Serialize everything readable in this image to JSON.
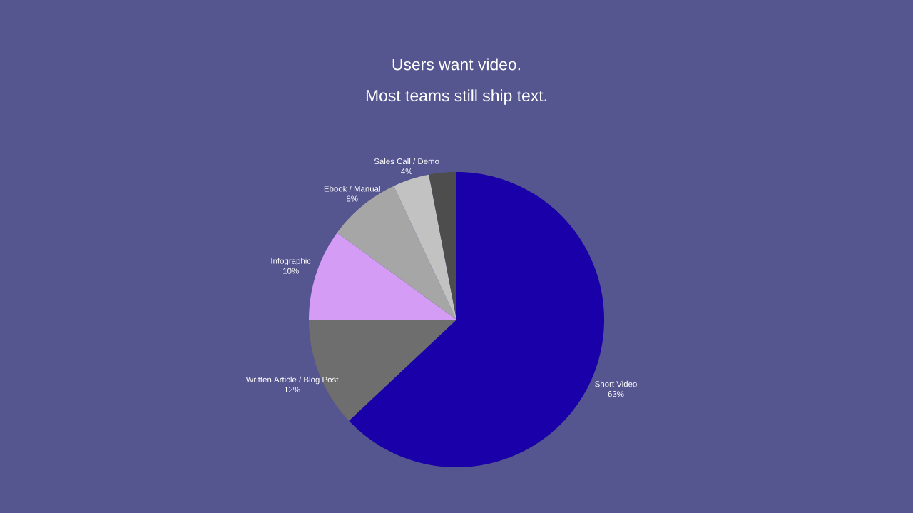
{
  "chart_data": {
    "type": "pie",
    "title": "Users want video.",
    "subtitle": "Most teams still ship text.",
    "categories": [
      "Short Video",
      "Written Article / Blog Post",
      "Infographic",
      "Ebook / Manual",
      "Sales Call / Demo",
      null
    ],
    "values": [
      63,
      12,
      10,
      8,
      4,
      3
    ],
    "value_labels": [
      "63%",
      "12%",
      "10%",
      "8%",
      "4%",
      null
    ],
    "colors": [
      "#1a00a8",
      "#6e6e6e",
      "#d49cf5",
      "#a6a6a6",
      "#c2c2c2",
      "#4d4d4d"
    ]
  }
}
